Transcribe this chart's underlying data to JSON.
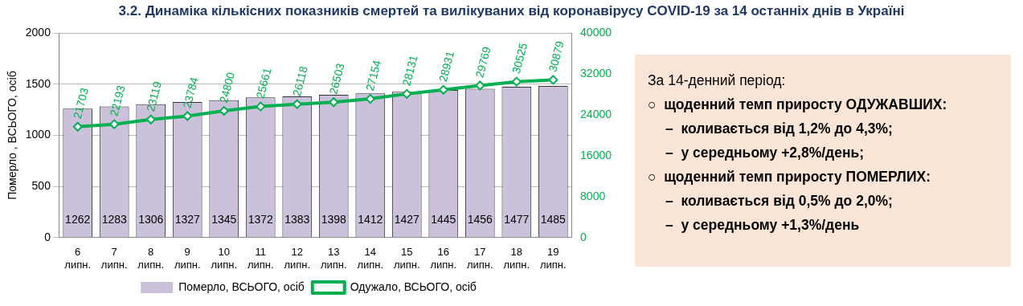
{
  "chart_data": {
    "type": "bar",
    "title": "3.2.  Динаміка кількісних показників смертей та вилікуваних від коронавірусу COVID-19 за 14 останніх днів в Україні",
    "categories": [
      "6 липн.",
      "7 липн.",
      "8 липн.",
      "9 липн.",
      "10 липн.",
      "11 липн.",
      "12 липн.",
      "13 липн.",
      "14 липн.",
      "15 липн.",
      "16 липн.",
      "17 липн.",
      "18 липн.",
      "19 липн."
    ],
    "ylabel": "Померло , ВСЬОГО, осіб",
    "ylim": [
      0,
      2000
    ],
    "yticks": [
      0,
      500,
      1000,
      1500,
      2000
    ],
    "y2lim": [
      0,
      40000
    ],
    "y2ticks": [
      0,
      8000,
      16000,
      24000,
      32000,
      40000
    ],
    "series": [
      {
        "name": "Померло, ВСЬОГО, осіб",
        "color": "#ccc1da",
        "values": [
          1262,
          1283,
          1306,
          1327,
          1345,
          1372,
          1383,
          1398,
          1412,
          1427,
          1445,
          1456,
          1477,
          1485
        ]
      },
      {
        "name": "Одужало, ВСЬОГО, осіб",
        "type": "line",
        "axis": "y2",
        "color": "#00b050",
        "values": [
          21703,
          22193,
          23119,
          23784,
          24800,
          25661,
          26118,
          26503,
          27154,
          28131,
          28931,
          29769,
          30525,
          30879
        ]
      }
    ],
    "data_labels": true,
    "grid": "y",
    "legend": "bottom",
    "marker": "diamond",
    "line_style": "solid",
    "annotations": [
      "За 14-денний період:",
      "○  щоденний темп приросту ОДУЖАВШИХ:",
      "–  коливається від 1,2% до 4,3%;",
      "–  у середньому +2,8%/день;",
      "○  щоденний темп приросту ПОМЕРЛИХ:",
      "–  коливається від 0,5% до 2,0%;",
      "–  у середньому +1,3%/день"
    ]
  }
}
